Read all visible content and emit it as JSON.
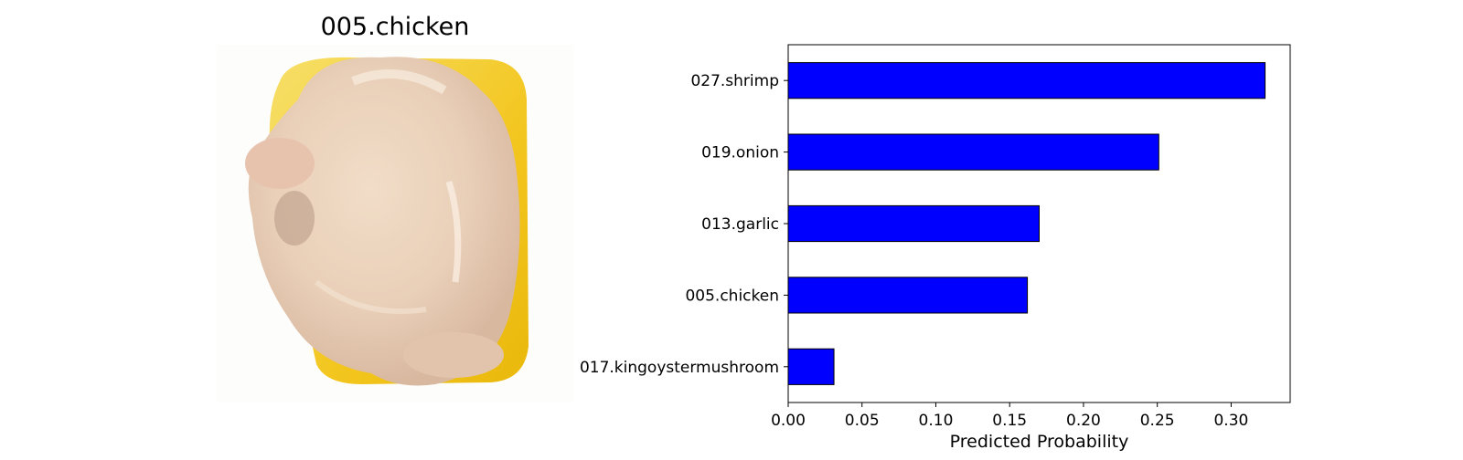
{
  "image_panel": {
    "title": "005.chicken",
    "photo_subject": "raw whole chicken on yellow tray"
  },
  "chart_data": {
    "type": "bar",
    "orientation": "horizontal",
    "categories": [
      "027.shrimp",
      "019.onion",
      "013.garlic",
      "005.chicken",
      "017.kingoystermushroom"
    ],
    "values": [
      0.323,
      0.251,
      0.17,
      0.162,
      0.031
    ],
    "xlabel": "Predicted Probability",
    "ylabel": "",
    "xlim": [
      0,
      0.34
    ],
    "xticks": [
      "0.00",
      "0.05",
      "0.10",
      "0.15",
      "0.20",
      "0.25",
      "0.30"
    ],
    "bar_color": "#0000ff",
    "bar_edge_color": "#000000",
    "grid": false,
    "legend": "none"
  }
}
